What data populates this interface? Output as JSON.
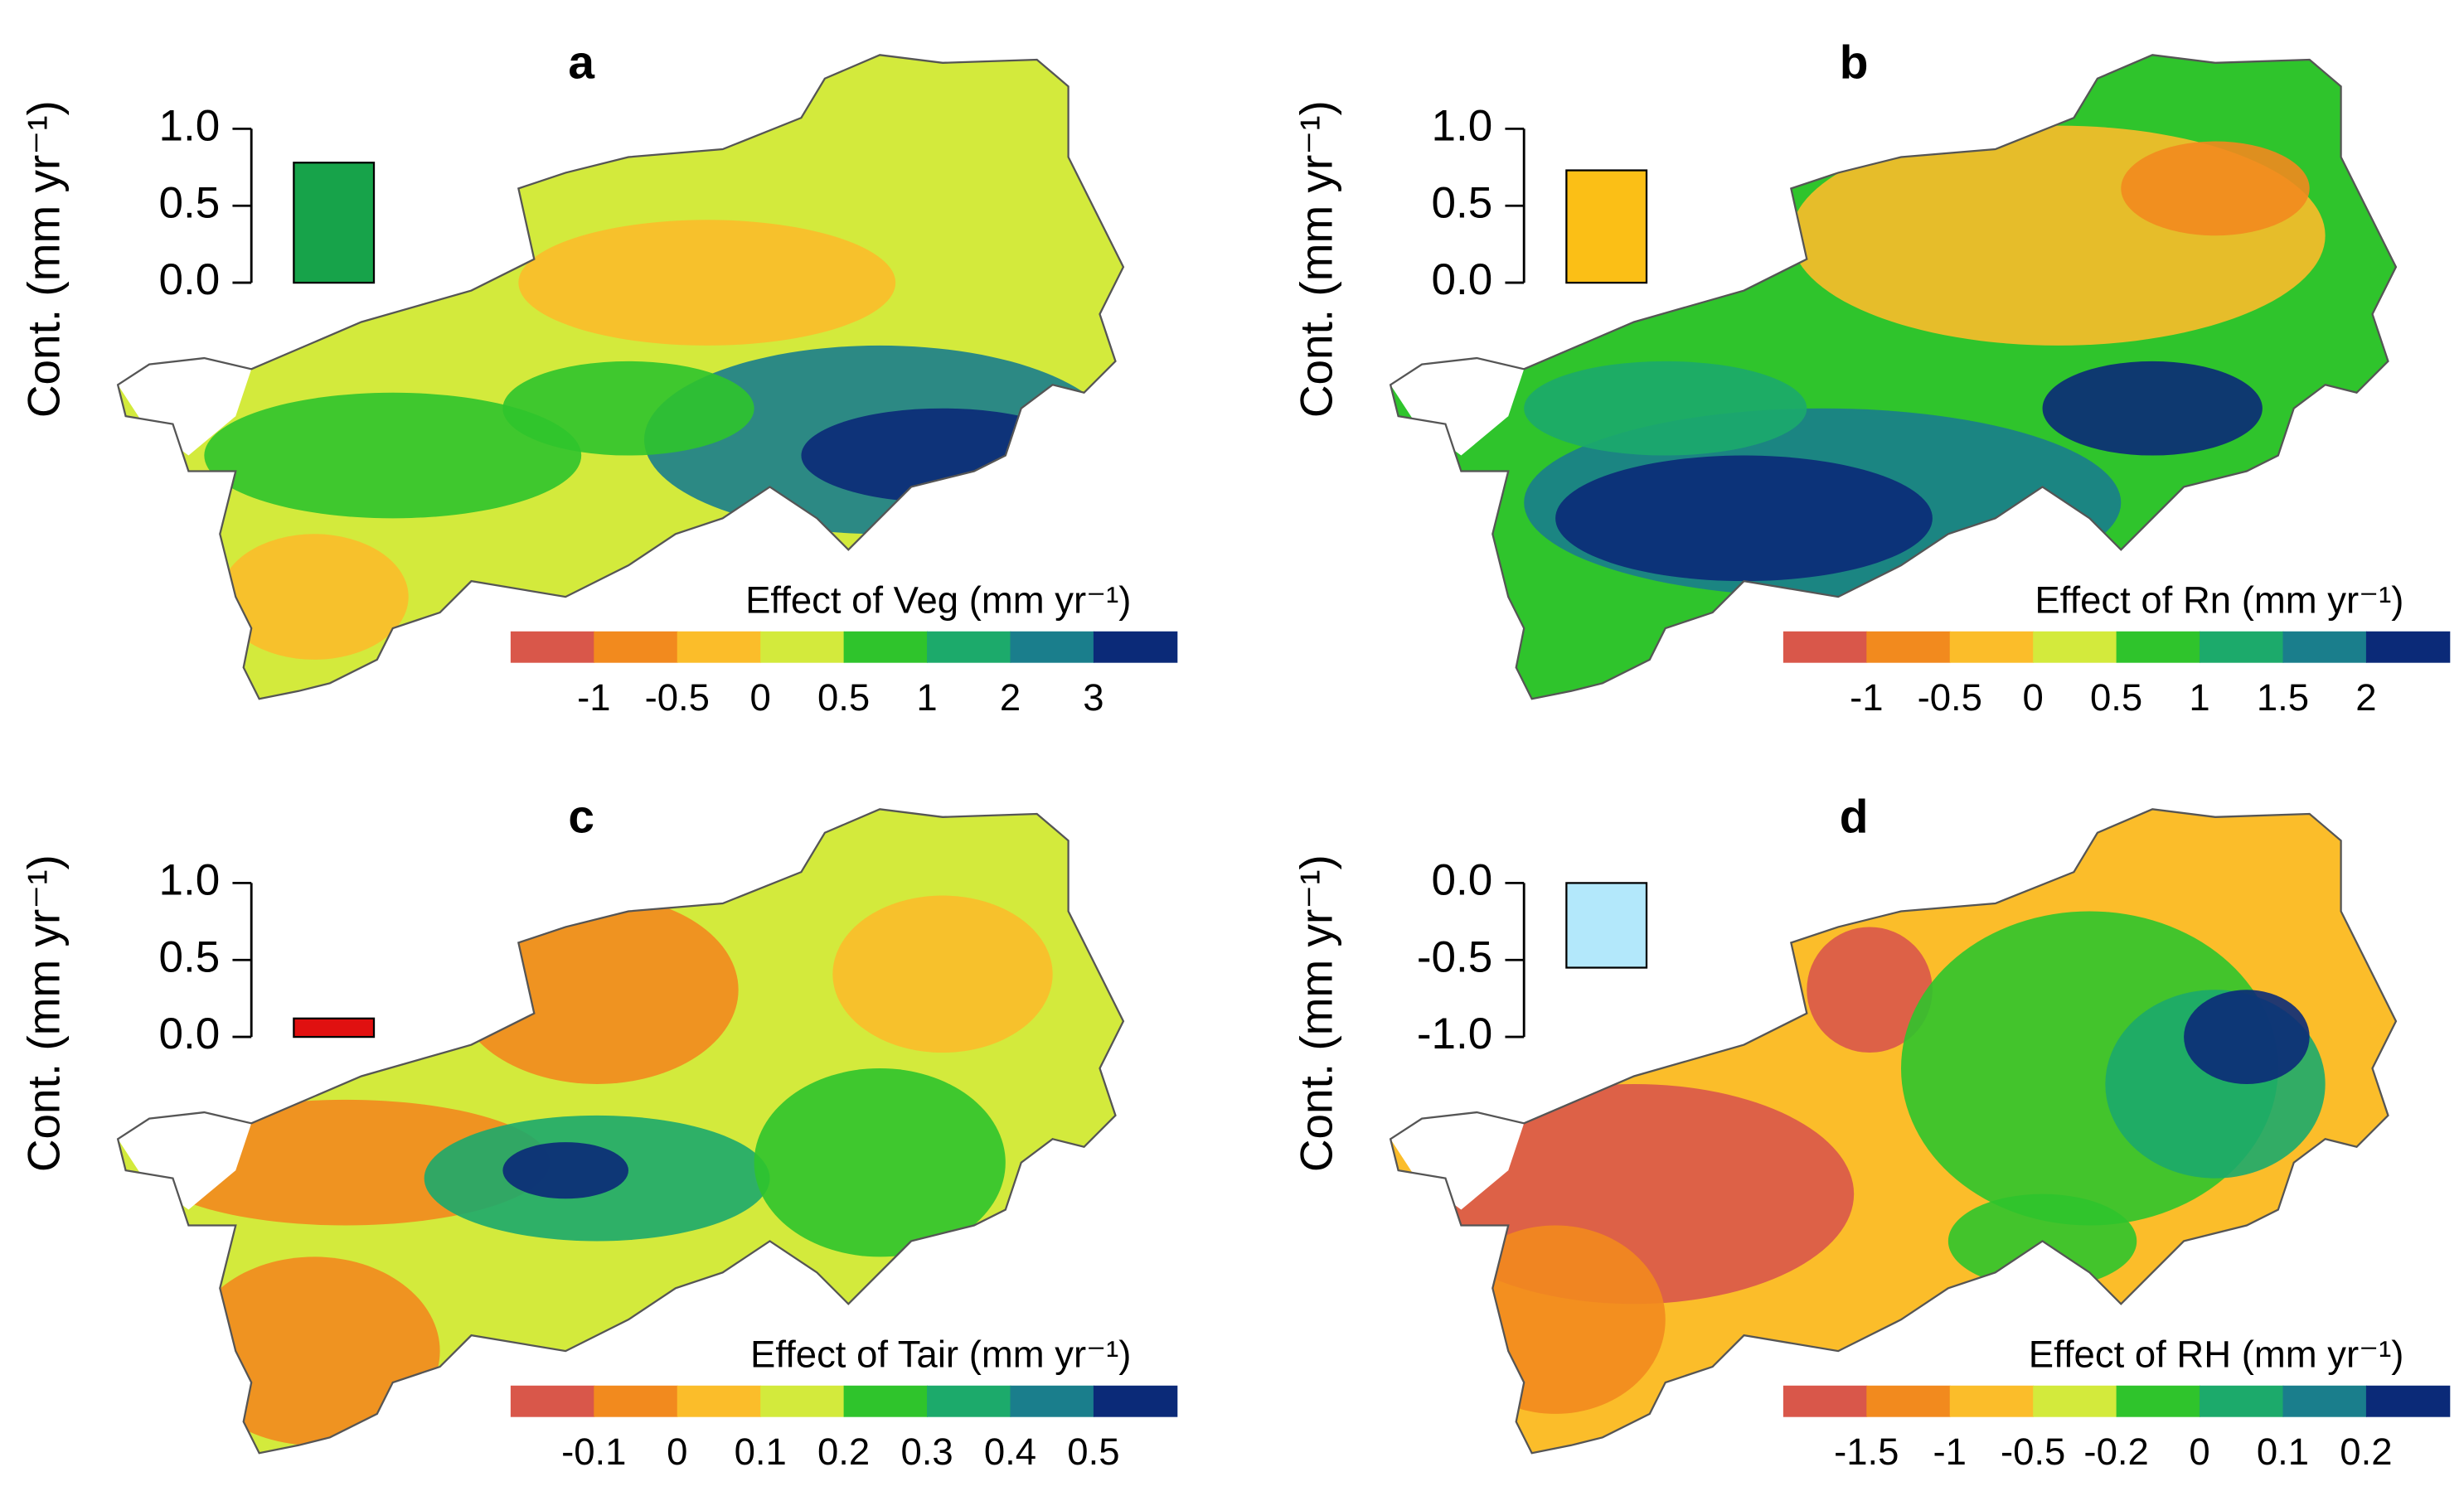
{
  "panels": [
    {
      "label": "a",
      "ylabel": "Cont. (mm yr⁻¹)",
      "bar": {
        "value": 0.78,
        "color": "#17a34a"
      },
      "ylim": [
        0,
        1.0
      ],
      "yticks": [
        {
          "value": 1.0,
          "label": "1.0"
        },
        {
          "value": 0.5,
          "label": "0.5"
        },
        {
          "value": 0,
          "label": "0.0"
        }
      ],
      "colorbar": {
        "title": "Effect of Veg (mm yr⁻¹)",
        "colors": [
          "#d9574a",
          "#f28a1e",
          "#fbbd2a",
          "#d3ea3c",
          "#2fc42c",
          "#1caa6b",
          "#1a7e8c",
          "#0b2a78"
        ],
        "ticks": [
          -1,
          -0.5,
          0,
          0.5,
          1,
          2,
          3
        ]
      }
    },
    {
      "label": "b",
      "ylabel": "Cont. (mm yr⁻¹)",
      "bar": {
        "value": 0.73,
        "color": "#fbbf16"
      },
      "ylim": [
        0,
        1.0
      ],
      "yticks": [
        {
          "value": 1.0,
          "label": "1.0"
        },
        {
          "value": 0.5,
          "label": "0.5"
        },
        {
          "value": 0,
          "label": "0.0"
        }
      ],
      "colorbar": {
        "title": "Effect of Rn (mm yr⁻¹)",
        "colors": [
          "#d9574a",
          "#f28a1e",
          "#fbbd2a",
          "#d3ea3c",
          "#2fc42c",
          "#1caa6b",
          "#1a7e8c",
          "#0b2a78"
        ],
        "ticks": [
          -1,
          -0.5,
          0,
          0.5,
          1,
          1.5,
          2
        ]
      }
    },
    {
      "label": "c",
      "ylabel": "Cont. (mm yr⁻¹)",
      "bar": {
        "value": 0.12,
        "color": "#e01010"
      },
      "ylim": [
        0,
        1.0
      ],
      "yticks": [
        {
          "value": 1.0,
          "label": "1.0"
        },
        {
          "value": 0.5,
          "label": "0.5"
        },
        {
          "value": 0,
          "label": "0.0"
        }
      ],
      "colorbar": {
        "title": "Effect of Tair (mm yr⁻¹)",
        "colors": [
          "#d9574a",
          "#f28a1e",
          "#fbbd2a",
          "#d3ea3c",
          "#2fc42c",
          "#1caa6b",
          "#1a7e8c",
          "#0b2a78"
        ],
        "ticks": [
          -0.1,
          0,
          0.1,
          0.2,
          0.3,
          0.4,
          0.5
        ]
      }
    },
    {
      "label": "d",
      "ylabel": "Cont. (mm yr⁻¹)",
      "bar": {
        "value": -0.55,
        "color": "#b3e8fb"
      },
      "ylim": [
        -1.0,
        0
      ],
      "yticks": [
        {
          "value": 0,
          "label": "0.0"
        },
        -0.5,
        {
          "value": -1.0,
          "label": "-1.0"
        }
      ],
      "colorbar": {
        "title": "Effect of RH (mm yr⁻¹)",
        "colors": [
          "#d9574a",
          "#f28a1e",
          "#fbbd2a",
          "#d3ea3c",
          "#2fc42c",
          "#1caa6b",
          "#1a7e8c",
          "#0b2a78"
        ],
        "ticks": [
          -1.5,
          -1,
          -0.5,
          -0.2,
          0,
          0.1,
          0.2
        ]
      }
    }
  ]
}
